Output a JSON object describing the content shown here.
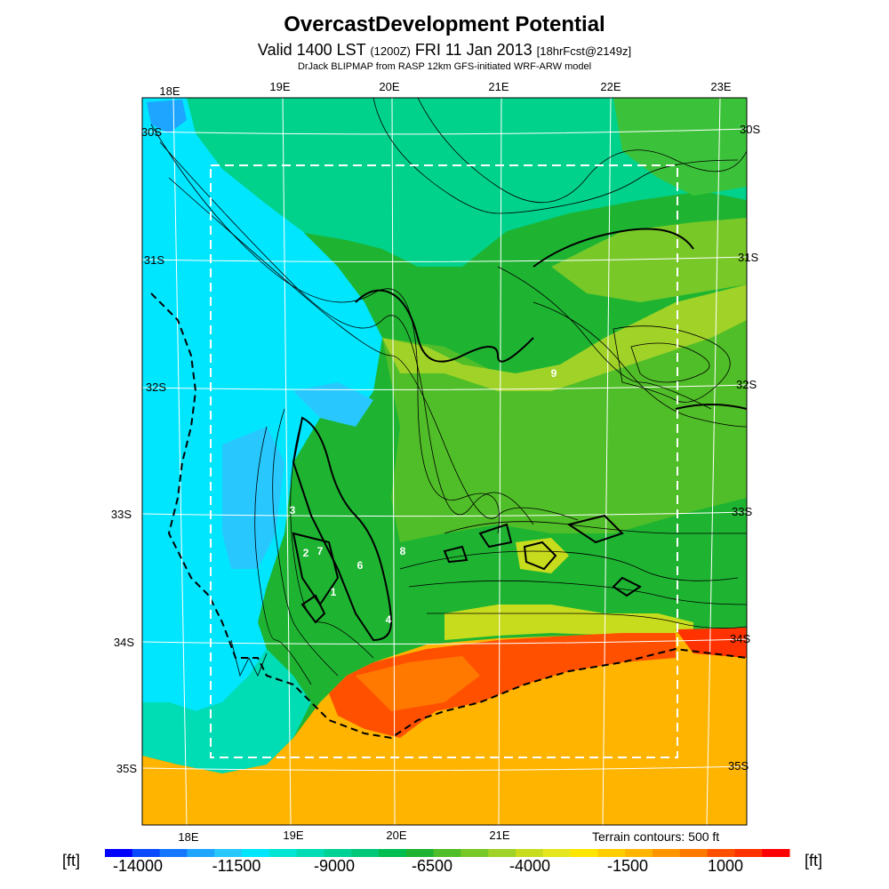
{
  "header": {
    "title": "OvercastDevelopment Potential",
    "valid_prefix": "Valid 1400 LST",
    "utc": "(1200Z)",
    "date": "FRI 11 Jan 2013",
    "forecast": "[18hrFcst@2149z]",
    "credit": "DrJack BLIPMAP from RASP 12km GFS-initiated WRF-ARW model"
  },
  "map": {
    "top_lon_labels": [
      "18E",
      "19E",
      "20E",
      "21E",
      "22E",
      "23E"
    ],
    "bottom_lon_labels": [
      "18E",
      "19E",
      "20E",
      "21E"
    ],
    "left_lat_labels": [
      "30S",
      "31S",
      "32S",
      "33S",
      "34S",
      "35S"
    ],
    "right_lat_labels": [
      "30S",
      "31S",
      "32S",
      "33S",
      "34S",
      "35S"
    ],
    "contour_labels": [
      "9",
      "3",
      "2",
      "7",
      "6",
      "8",
      "1",
      "4"
    ],
    "terrain_note": "Terrain contours: 500 ft"
  },
  "colorbar": {
    "unit": "[ft]",
    "tick_labels": [
      "-14000",
      "-11500",
      "-9000",
      "-6500",
      "-4000",
      "-1500",
      "1000"
    ],
    "colors": [
      "#0000ff",
      "#0a4bff",
      "#1478ff",
      "#1ea5ff",
      "#28c8ff",
      "#00e6ff",
      "#00e6d2",
      "#00dcb4",
      "#00d296",
      "#00c878",
      "#00be50",
      "#1eb432",
      "#50be28",
      "#78c828",
      "#a0d228",
      "#c8dc1e",
      "#e6e61e",
      "#ffe600",
      "#ffcd00",
      "#ffb400",
      "#ff9600",
      "#ff7800",
      "#ff5000",
      "#ff3200",
      "#ff0000"
    ]
  }
}
